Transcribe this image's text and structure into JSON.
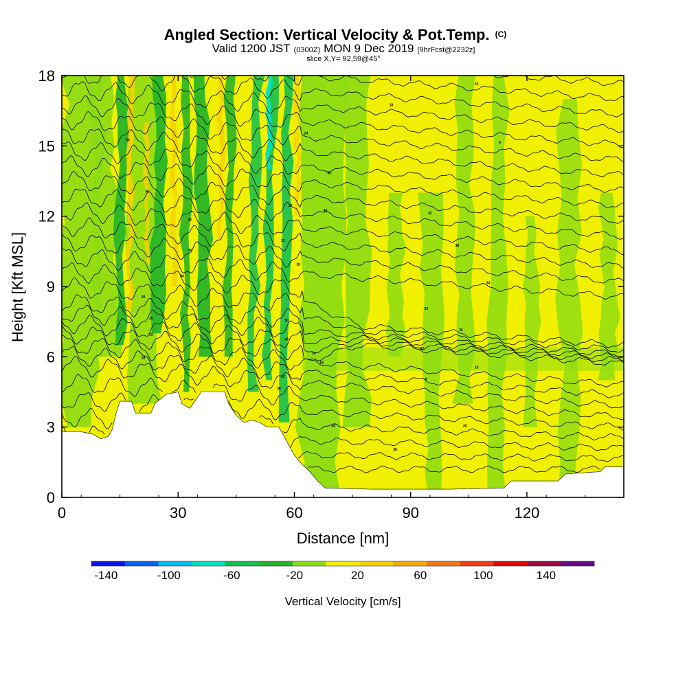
{
  "chart_data": {
    "type": "heatmap",
    "title": "Angled Section: Vertical Velocity & Pot.Temp.",
    "title_suffix": "(C)",
    "subtitle_parts": [
      "Valid 1200 JST",
      "(0300Z)",
      "MON 9 Dec 2019",
      "[9hrFcst@2232z]"
    ],
    "slice_label": "slice X,Y= 92,59@45°",
    "xlabel": "Distance [nm]",
    "ylabel": "Height [Kft MSL]",
    "xlim": [
      0,
      145
    ],
    "ylim": [
      0,
      18
    ],
    "x_ticks": [
      "0",
      "30",
      "60",
      "90",
      "120"
    ],
    "y_ticks": [
      "0",
      "3",
      "6",
      "9",
      "12",
      "15",
      "18"
    ],
    "x_tick_values": [
      0,
      30,
      60,
      90,
      120
    ],
    "y_tick_values": [
      0,
      3,
      6,
      9,
      12,
      15,
      18
    ],
    "colorbar": {
      "title": "Vertical Velocity [cm/s]",
      "tick_labels": [
        "-140",
        "-100",
        "-60",
        "-20",
        "20",
        "60",
        "100",
        "140"
      ],
      "tick_values": [
        -140,
        -100,
        -60,
        -20,
        20,
        60,
        100,
        140
      ],
      "levels": [
        -160,
        -140,
        -120,
        -100,
        -80,
        -60,
        -40,
        -20,
        0,
        20,
        40,
        60,
        80,
        100,
        120,
        140,
        160
      ],
      "colors": [
        "#0a14e6",
        "#0a64f0",
        "#00c0f0",
        "#00e0c0",
        "#14c050",
        "#28b428",
        "#8cdc14",
        "#f0f000",
        "#f5d200",
        "#f5aa00",
        "#f57814",
        "#f03c14",
        "#dc0a0a",
        "#a00a46",
        "#640a8c"
      ]
    },
    "theta_contours": {
      "label_values": [
        "50",
        "46",
        "42",
        "38",
        "34",
        "30",
        "26",
        "22",
        "18",
        "14",
        "10",
        "6"
      ],
      "label_strings": [
        "50",
        "46",
        "42",
        "38",
        "34",
        "30",
        "26",
        "22",
        "18",
        "14",
        "10",
        "6"
      ]
    }
  }
}
